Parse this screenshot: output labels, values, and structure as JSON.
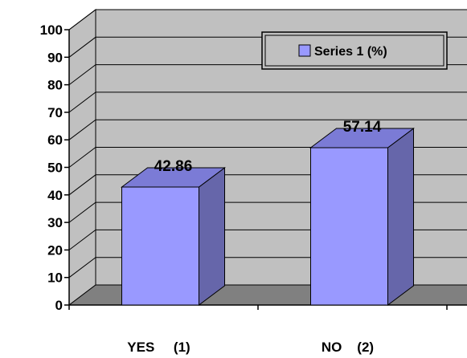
{
  "chart_data": {
    "type": "bar",
    "categories": [
      "YES     (1)",
      "NO    (2)"
    ],
    "series": [
      {
        "name": "Series 1 (%)",
        "values": [
          42.86,
          57.14
        ],
        "color": "#9999ff",
        "side_color": "#6666aa",
        "top_color": "#7b7bd6"
      }
    ],
    "data_labels": [
      "42.86",
      "57.14"
    ],
    "ylim": [
      0,
      100
    ],
    "y_ticks": [
      0,
      10,
      20,
      30,
      40,
      50,
      60,
      70,
      80,
      90,
      100
    ],
    "grid": true,
    "legend": "top-right",
    "title": "",
    "xlabel": "",
    "ylabel": "",
    "wall_color": "#c0c0c0",
    "floor_color": "#808080"
  }
}
